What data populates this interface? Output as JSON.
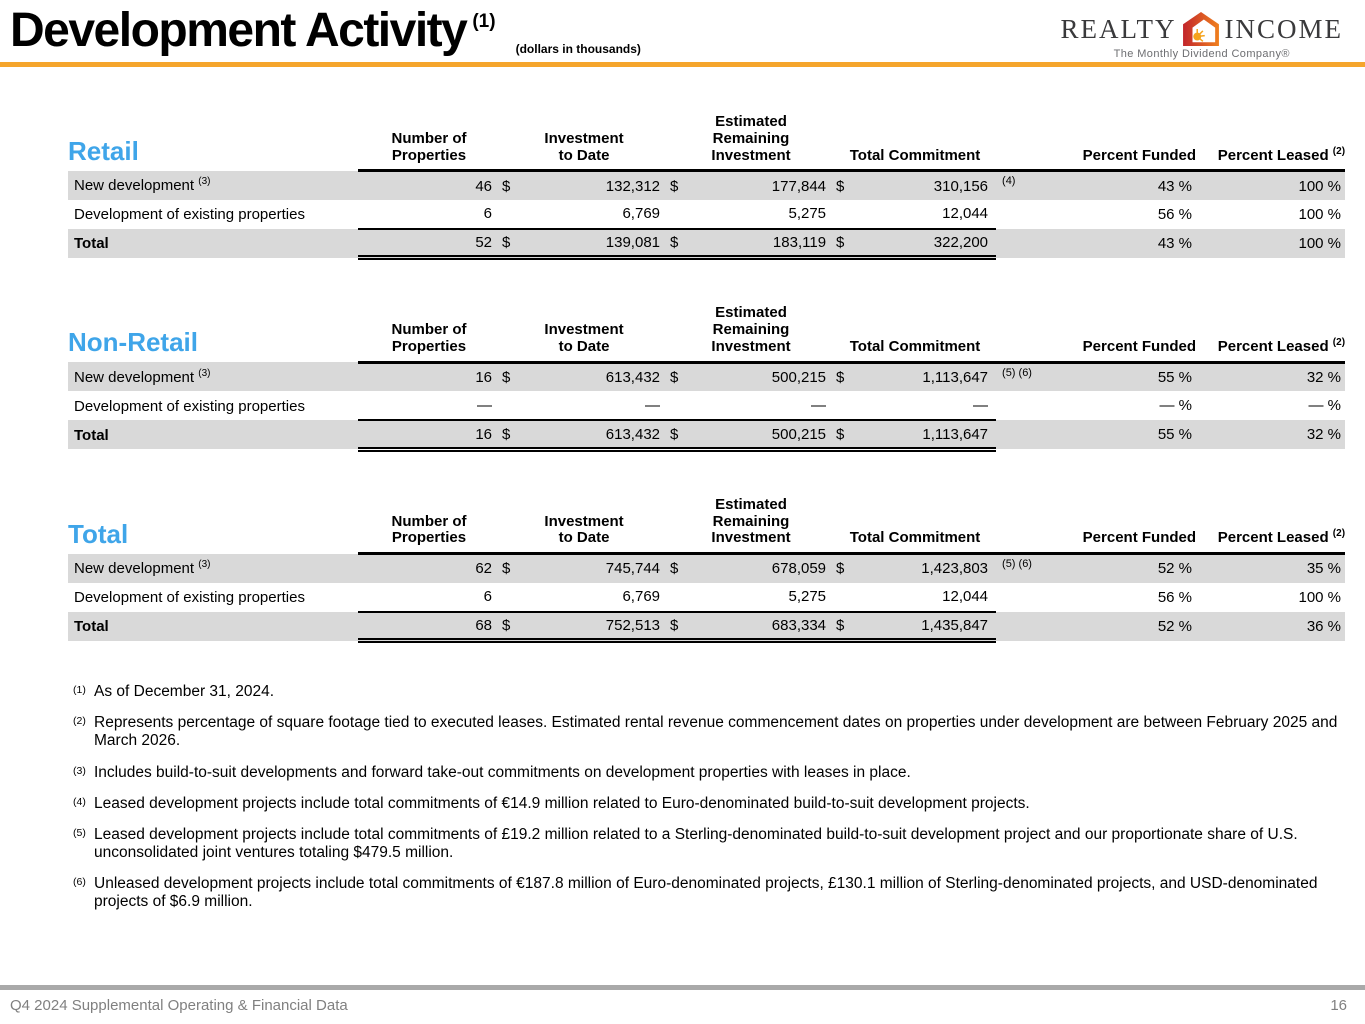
{
  "header": {
    "title": "Development Activity",
    "title_sup": "(1)",
    "subtitle": "(dollars in thousands)",
    "logo": {
      "realty": "REALTY",
      "income": "INCOME",
      "tagline": "The Monthly Dividend Company®"
    }
  },
  "columns": {
    "number_of_properties": "Number of\nProperties",
    "investment_to_date": "Investment\nto Date",
    "estimated_remaining_investment": "Estimated\nRemaining\nInvestment",
    "total_commitment": "Total Commitment",
    "percent_funded": "Percent Funded",
    "percent_leased": "Percent Leased ",
    "percent_leased_sup": "(2)"
  },
  "tables": [
    {
      "title": "Retail",
      "rows": [
        {
          "label": "New development ",
          "sup": "(3)",
          "num": "46",
          "cur1": "$",
          "inv": "132,312",
          "cur2": "$",
          "rem": "177,844",
          "cur3": "$",
          "commit": "310,156",
          "ref": "(4)",
          "funded": "43 %",
          "leased": "100 %"
        },
        {
          "label": "Development of existing properties",
          "sup": "",
          "num": "6",
          "cur1": "",
          "inv": "6,769",
          "cur2": "",
          "rem": "5,275",
          "cur3": "",
          "commit": "12,044",
          "ref": "",
          "funded": "56 %",
          "leased": "100 %"
        },
        {
          "label": "Total",
          "sup": "",
          "num": "52",
          "cur1": "$",
          "inv": "139,081",
          "cur2": "$",
          "rem": "183,119",
          "cur3": "$",
          "commit": "322,200",
          "ref": "",
          "funded": "43 %",
          "leased": "100 %"
        }
      ]
    },
    {
      "title": "Non-Retail",
      "rows": [
        {
          "label": "New development ",
          "sup": "(3)",
          "num": "16",
          "cur1": "$",
          "inv": "613,432",
          "cur2": "$",
          "rem": "500,215",
          "cur3": "$",
          "commit": "1,113,647",
          "ref": "(5) (6)",
          "funded": "55 %",
          "leased": "32 %"
        },
        {
          "label": "Development of existing properties",
          "sup": "",
          "num": "—",
          "cur1": "",
          "inv": "—",
          "cur2": "",
          "rem": "—",
          "cur3": "",
          "commit": "—",
          "ref": "",
          "funded": "— %",
          "leased": "— %"
        },
        {
          "label": "Total",
          "sup": "",
          "num": "16",
          "cur1": "$",
          "inv": "613,432",
          "cur2": "$",
          "rem": "500,215",
          "cur3": "$",
          "commit": "1,113,647",
          "ref": "",
          "funded": "55 %",
          "leased": "32 %"
        }
      ]
    },
    {
      "title": "Total",
      "rows": [
        {
          "label": "New development ",
          "sup": "(3)",
          "num": "62",
          "cur1": "$",
          "inv": "745,744",
          "cur2": "$",
          "rem": "678,059",
          "cur3": "$",
          "commit": "1,423,803",
          "ref": "(5) (6)",
          "funded": "52 %",
          "leased": "35 %"
        },
        {
          "label": "Development of existing properties",
          "sup": "",
          "num": "6",
          "cur1": "",
          "inv": "6,769",
          "cur2": "",
          "rem": "5,275",
          "cur3": "",
          "commit": "12,044",
          "ref": "",
          "funded": "56 %",
          "leased": "100 %"
        },
        {
          "label": "Total",
          "sup": "",
          "num": "68",
          "cur1": "$",
          "inv": "752,513",
          "cur2": "$",
          "rem": "683,334",
          "cur3": "$",
          "commit": "1,435,847",
          "ref": "",
          "funded": "52 %",
          "leased": "36 %"
        }
      ]
    }
  ],
  "footnotes": [
    {
      "mark": "(1)",
      "text": "As of December 31, 2024."
    },
    {
      "mark": "(2)",
      "text": "Represents percentage of square footage tied to executed leases. Estimated rental revenue commencement dates on properties under development are between February 2025 and March 2026."
    },
    {
      "mark": "(3)",
      "text": "Includes build-to-suit developments and forward take-out commitments on development properties with leases in place."
    },
    {
      "mark": "(4)",
      "text": "Leased development projects include total commitments of €14.9 million related to Euro-denominated build-to-suit development projects."
    },
    {
      "mark": "(5)",
      "text": "Leased development projects include total commitments of £19.2 million related to a Sterling-denominated build-to-suit development project and our proportionate share of U.S. unconsolidated joint ventures totaling $479.5 million."
    },
    {
      "mark": "(6)",
      "text": "Unleased development projects include total commitments of €187.8 million of Euro-denominated projects, £130.1 million of Sterling-denominated projects, and USD-denominated projects of $6.9 million."
    }
  ],
  "footer": {
    "left": "Q4 2024 Supplemental Operating & Financial Data",
    "page": "16"
  },
  "colors": {
    "accent-orange": "#F5A52C",
    "section-blue": "#3FA5E9",
    "row-shade": "#D9D9D9",
    "footer-bar": "#A9A9A9",
    "footer-text": "#808080"
  }
}
